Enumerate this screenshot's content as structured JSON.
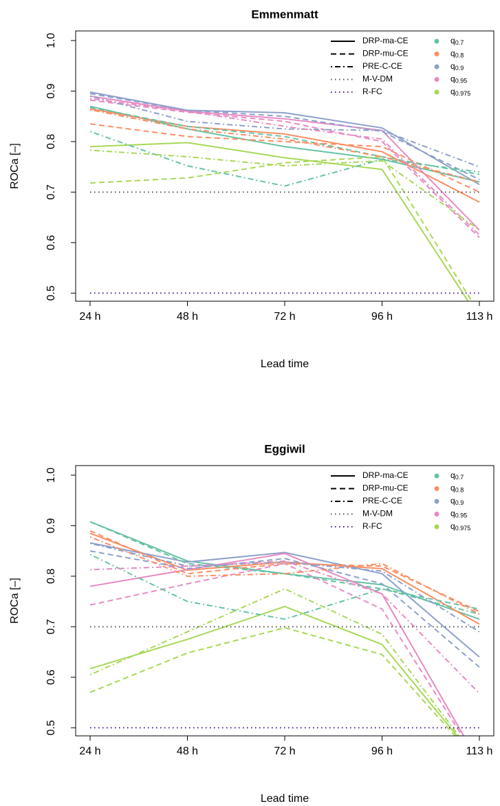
{
  "chart_data": [
    {
      "type": "line",
      "title": "Emmenmatt",
      "xlabel": "Lead time",
      "ylabel": "ROCa [–]",
      "categories": [
        "24 h",
        "48 h",
        "72 h",
        "96 h",
        "113 h"
      ],
      "ylim": [
        0.484,
        1.019
      ],
      "yticks": [
        0.5,
        0.6,
        0.7,
        0.8,
        0.9,
        {
          "value": 1,
          "label": "1.0"
        }
      ],
      "quantiles": [
        {
          "label": "q",
          "sub": "0.7",
          "color": "#66c2a5"
        },
        {
          "label": "q",
          "sub": "0.8",
          "color": "#fc8d62"
        },
        {
          "label": "q",
          "sub": "0.9",
          "color": "#8da0cb"
        },
        {
          "label": "q",
          "sub": "0.95",
          "color": "#e78ac3"
        },
        {
          "label": "q",
          "sub": "0.975",
          "color": "#a6d854"
        }
      ],
      "methods": [
        {
          "name": "DRP-ma-CE",
          "dash": "solid",
          "series": [
            [
              0.87,
              0.825,
              0.79,
              0.765,
              0.72
            ],
            [
              0.865,
              0.83,
              0.815,
              0.78,
              0.68
            ],
            [
              0.898,
              0.862,
              0.857,
              0.827,
              0.715
            ],
            [
              0.89,
              0.86,
              0.845,
              0.822,
              0.625
            ],
            [
              0.79,
              0.798,
              0.768,
              0.745,
              0.45
            ]
          ]
        },
        {
          "name": "DRP-mu-CE",
          "dash": "dashed",
          "series": [
            [
              0.868,
              0.83,
              0.81,
              0.77,
              0.735
            ],
            [
              0.835,
              0.81,
              0.8,
              0.79,
              0.7
            ],
            [
              0.895,
              0.862,
              0.85,
              0.82,
              0.725
            ],
            [
              0.882,
              0.858,
              0.84,
              0.8,
              0.61
            ],
            [
              0.718,
              0.728,
              0.758,
              0.77,
              0.46
            ]
          ]
        },
        {
          "name": "PRE-C-CE",
          "dash": "dotdash",
          "series": [
            [
              0.82,
              0.752,
              0.712,
              0.765,
              0.74
            ],
            [
              0.863,
              0.825,
              0.805,
              0.77,
              0.72
            ],
            [
              0.89,
              0.84,
              0.825,
              0.822,
              0.75
            ],
            [
              0.885,
              0.86,
              0.83,
              0.805,
              0.615
            ],
            [
              0.783,
              0.77,
              0.752,
              0.762,
              0.625
            ]
          ]
        },
        {
          "name": "M-V-DM",
          "dash": "dotted",
          "color": "#555555",
          "values": [
            0.7,
            0.7,
            0.7,
            0.7,
            0.7
          ]
        },
        {
          "name": "R-FC",
          "dash": "dotted",
          "color": "#4b1a9a",
          "values": [
            0.5,
            0.5,
            0.5,
            0.5,
            0.5
          ]
        }
      ]
    },
    {
      "type": "line",
      "title": "Eggiwil",
      "xlabel": "Lead time",
      "ylabel": "ROCa [–]",
      "categories": [
        "24 h",
        "48 h",
        "72 h",
        "96 h",
        "113 h"
      ],
      "ylim": [
        0.484,
        1.019
      ],
      "yticks": [
        0.5,
        0.6,
        0.7,
        0.8,
        0.9,
        {
          "value": 1,
          "label": "1.0"
        }
      ],
      "quantiles": [
        {
          "label": "q",
          "sub": "0.7",
          "color": "#66c2a5"
        },
        {
          "label": "q",
          "sub": "0.8",
          "color": "#fc8d62"
        },
        {
          "label": "q",
          "sub": "0.9",
          "color": "#8da0cb"
        },
        {
          "label": "q",
          "sub": "0.95",
          "color": "#e78ac3"
        },
        {
          "label": "q",
          "sub": "0.975",
          "color": "#a6d854"
        }
      ],
      "methods": [
        {
          "name": "DRP-ma-CE",
          "dash": "solid",
          "series": [
            [
              0.908,
              0.83,
              0.805,
              0.783,
              0.715
            ],
            [
              0.885,
              0.812,
              0.828,
              0.815,
              0.705
            ],
            [
              0.866,
              0.828,
              0.847,
              0.805,
              0.64
            ],
            [
              0.78,
              0.813,
              0.845,
              0.765,
              0.43
            ],
            [
              0.617,
              0.675,
              0.74,
              0.665,
              0.43
            ]
          ]
        },
        {
          "name": "DRP-mu-CE",
          "dash": "dashed",
          "series": [
            [
              0.908,
              0.825,
              0.805,
              0.775,
              0.735
            ],
            [
              0.89,
              0.805,
              0.825,
              0.82,
              0.73
            ],
            [
              0.85,
              0.815,
              0.835,
              0.785,
              0.62
            ],
            [
              0.743,
              0.785,
              0.825,
              0.735,
              0.43
            ],
            [
              0.57,
              0.648,
              0.698,
              0.645,
              0.43
            ]
          ]
        },
        {
          "name": "PRE-C-CE",
          "dash": "dotdash",
          "series": [
            [
              0.843,
              0.75,
              0.715,
              0.775,
              0.725
            ],
            [
              0.878,
              0.8,
              0.805,
              0.825,
              0.725
            ],
            [
              0.865,
              0.82,
              0.828,
              0.81,
              0.69
            ],
            [
              0.813,
              0.82,
              0.83,
              0.765,
              0.568
            ],
            [
              0.605,
              0.69,
              0.775,
              0.685,
              0.43
            ]
          ]
        },
        {
          "name": "M-V-DM",
          "dash": "dotted",
          "color": "#555555",
          "values": [
            0.7,
            0.7,
            0.7,
            0.7,
            0.7
          ]
        },
        {
          "name": "R-FC",
          "dash": "dotted",
          "color": "#4b1a9a",
          "values": [
            0.5,
            0.5,
            0.5,
            0.5,
            0.5
          ]
        }
      ]
    }
  ]
}
